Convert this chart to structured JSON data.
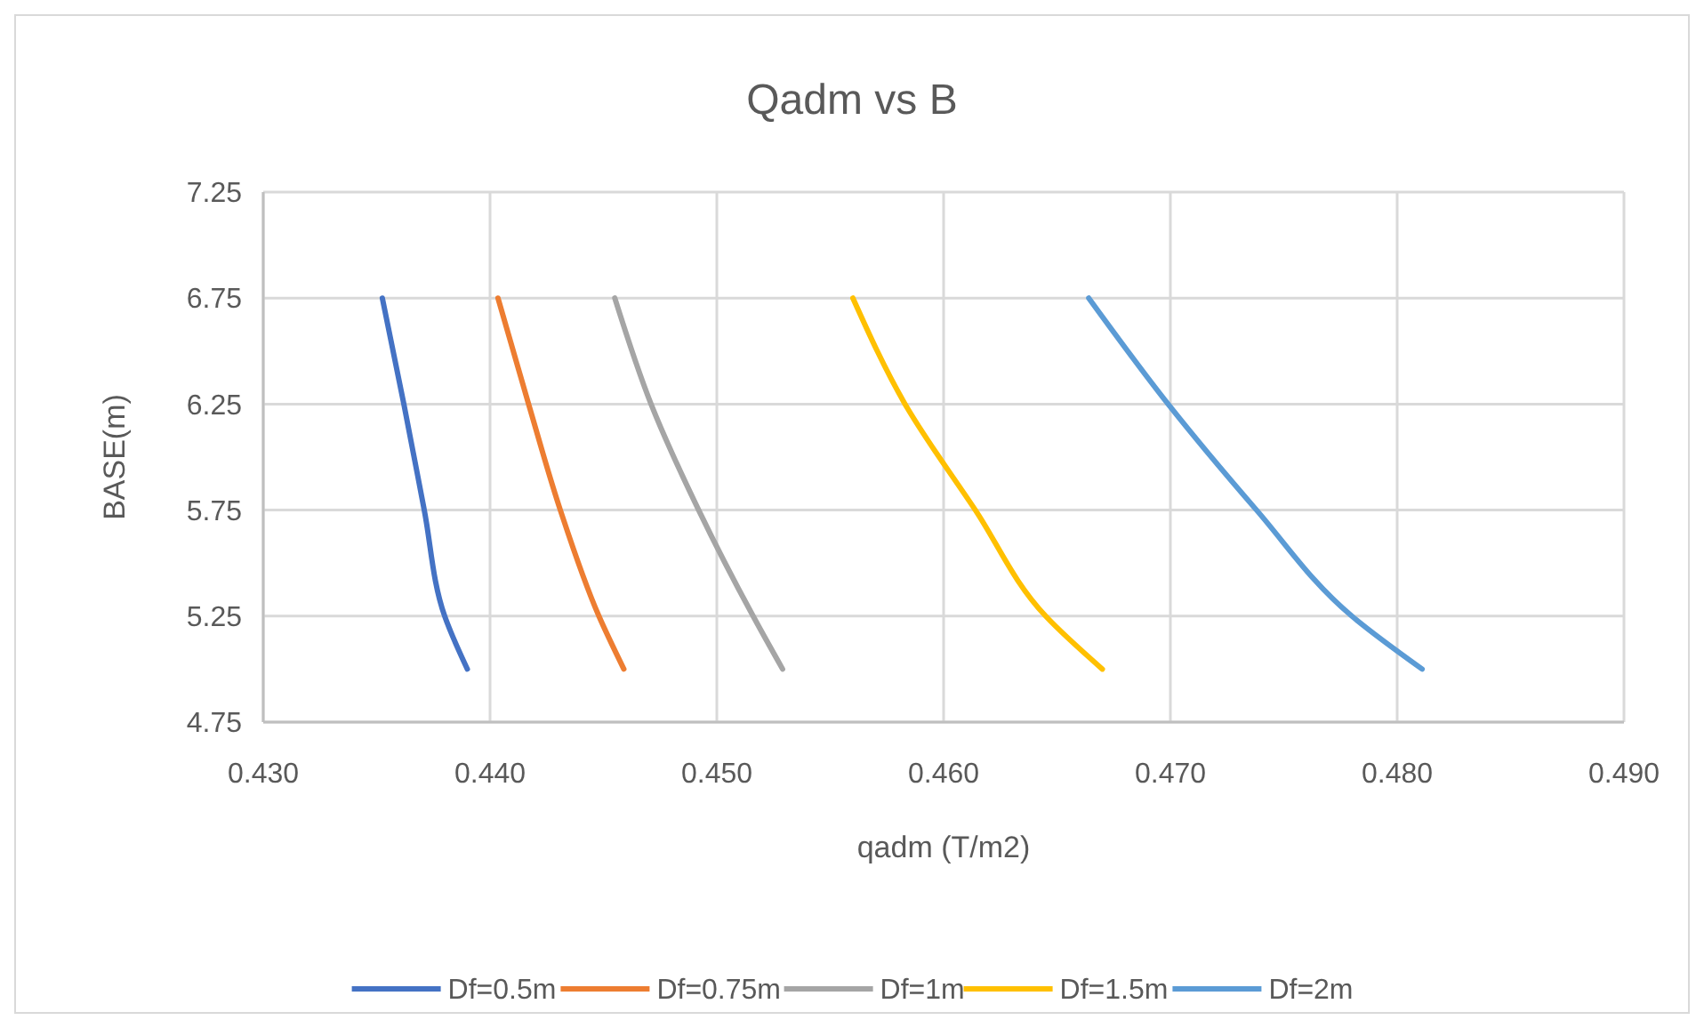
{
  "chart_data": {
    "type": "line",
    "title": "Qadm vs B",
    "xlabel": "qadm (T/m2)",
    "ylabel": "BASE(m)",
    "xlim": [
      0.43,
      0.49
    ],
    "xticks": [
      {
        "value": 0.43,
        "label": "0.430"
      },
      {
        "value": 0.44,
        "label": "0.440"
      },
      {
        "value": 0.45,
        "label": "0.450"
      },
      {
        "value": 0.46,
        "label": "0.460"
      },
      {
        "value": 0.47,
        "label": "0.470"
      },
      {
        "value": 0.48,
        "label": "0.480"
      },
      {
        "value": 0.49,
        "label": "0.490"
      }
    ],
    "ylim": [
      4.75,
      7.25
    ],
    "yticks": [
      4.75,
      5.25,
      5.75,
      6.25,
      6.75,
      7.25
    ],
    "grid": true,
    "legend": "bottom",
    "marker": "none",
    "series": [
      {
        "name": "Df=0.5m",
        "color": "#4472c4",
        "x": [
          0.43525,
          0.4362,
          0.4371,
          0.438,
          0.439
        ],
        "values": [
          6.75,
          6.25,
          5.75,
          5.25,
          5.0
        ]
      },
      {
        "name": "Df=0.75m",
        "color": "#ed7d31",
        "x": [
          0.44035,
          0.4417,
          0.4431,
          0.4448,
          0.4459
        ],
        "values": [
          6.75,
          6.25,
          5.75,
          5.25,
          5.0
        ]
      },
      {
        "name": "Df=1m",
        "color": "#a5a5a5",
        "x": [
          0.4455,
          0.4471,
          0.4492,
          0.4516,
          0.4529
        ],
        "values": [
          6.75,
          6.25,
          5.75,
          5.25,
          5.0
        ]
      },
      {
        "name": "Df=1.5m",
        "color": "#ffc000",
        "x": [
          0.456,
          0.4583,
          0.4614,
          0.4645,
          0.467
        ],
        "values": [
          6.75,
          6.25,
          5.75,
          5.25,
          5.0
        ]
      },
      {
        "name": "Df=2m",
        "color": "#5b9bd5",
        "x": [
          0.4664,
          0.4699,
          0.4738,
          0.478,
          0.4811
        ],
        "values": [
          6.75,
          6.25,
          5.75,
          5.25,
          5.0
        ]
      }
    ]
  }
}
